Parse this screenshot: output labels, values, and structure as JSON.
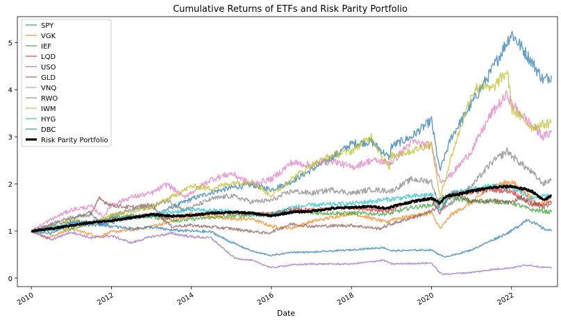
{
  "chart_data": {
    "type": "line",
    "title": "Cumulative Returns of ETFs and Risk Parity Portfolio",
    "xlabel": "Date",
    "ylabel": "",
    "x_ticks": [
      "2010",
      "2012",
      "2014",
      "2016",
      "2018",
      "2020",
      "2022"
    ],
    "y_ticks": [
      "0",
      "1",
      "2",
      "3",
      "4",
      "5"
    ],
    "xlim": [
      2009.65,
      2023.15
    ],
    "ylim": [
      -0.18,
      5.55
    ],
    "grid": false,
    "legend_position": "top-left",
    "series": [
      {
        "name": "SPY",
        "color": "#1f77b4",
        "width": 1.5,
        "opacity": 0.7,
        "x": [
          2010,
          2010.5,
          2011,
          2011.6,
          2012,
          2012.5,
          2013,
          2013.5,
          2014,
          2014.5,
          2015,
          2015.5,
          2016,
          2016.5,
          2017,
          2017.5,
          2018,
          2018.5,
          2018.95,
          2019,
          2019.5,
          2020,
          2020.18,
          2020.22,
          2020.5,
          2021,
          2021.5,
          2022,
          2022.5,
          2022.8,
          2023
        ],
        "y": [
          1.0,
          1.02,
          1.15,
          1.12,
          1.18,
          1.28,
          1.32,
          1.5,
          1.68,
          1.82,
          1.92,
          1.98,
          1.88,
          2.05,
          2.3,
          2.55,
          2.85,
          2.9,
          2.55,
          2.8,
          3.0,
          3.35,
          2.4,
          2.3,
          3.0,
          3.7,
          4.4,
          5.2,
          4.6,
          4.2,
          4.3
        ]
      },
      {
        "name": "VGK",
        "color": "#ff7f0e",
        "width": 1.5,
        "opacity": 0.7,
        "x": [
          2010,
          2010.4,
          2011,
          2011.7,
          2012,
          2012.5,
          2013,
          2013.5,
          2014,
          2014.5,
          2015,
          2015.5,
          2016,
          2016.5,
          2017,
          2018,
          2018.9,
          2019,
          2020,
          2020.22,
          2020.5,
          2021,
          2021.5,
          2022,
          2022.7,
          2023
        ],
        "y": [
          1.0,
          0.85,
          1.05,
          0.88,
          0.98,
          1.02,
          1.1,
          1.2,
          1.33,
          1.32,
          1.25,
          1.26,
          1.1,
          1.06,
          1.2,
          1.38,
          1.18,
          1.25,
          1.38,
          1.05,
          1.35,
          1.6,
          1.95,
          2.05,
          1.55,
          1.75
        ]
      },
      {
        "name": "IEF",
        "color": "#2ca02c",
        "width": 1.5,
        "opacity": 0.7,
        "x": [
          2010,
          2011,
          2011.8,
          2012.5,
          2013,
          2013.7,
          2014,
          2015,
          2016,
          2016.5,
          2017,
          2018,
          2018.9,
          2019.5,
          2020,
          2020.3,
          2020.6,
          2021,
          2021.5,
          2022,
          2022.5,
          2023
        ],
        "y": [
          1.0,
          1.05,
          1.25,
          1.33,
          1.3,
          1.22,
          1.25,
          1.32,
          1.35,
          1.44,
          1.38,
          1.38,
          1.36,
          1.5,
          1.55,
          1.72,
          1.7,
          1.62,
          1.63,
          1.6,
          1.45,
          1.4
        ]
      },
      {
        "name": "LQD",
        "color": "#d62728",
        "width": 1.5,
        "opacity": 0.7,
        "x": [
          2010,
          2011,
          2012,
          2013,
          2013.5,
          2014,
          2015,
          2016,
          2016.5,
          2017,
          2018,
          2018.9,
          2019.5,
          2020,
          2020.2,
          2020.5,
          2021,
          2021.5,
          2022,
          2022.5,
          2023
        ],
        "y": [
          1.0,
          1.1,
          1.25,
          1.35,
          1.28,
          1.35,
          1.38,
          1.36,
          1.46,
          1.44,
          1.5,
          1.43,
          1.62,
          1.7,
          1.38,
          1.8,
          1.82,
          1.88,
          1.85,
          1.55,
          1.6
        ]
      },
      {
        "name": "USO",
        "color": "#9467bd",
        "width": 1.5,
        "opacity": 0.7,
        "x": [
          2010,
          2010.5,
          2011,
          2011.5,
          2012,
          2012.5,
          2013,
          2013.5,
          2014,
          2014.5,
          2014.9,
          2015.1,
          2015.5,
          2016,
          2016.5,
          2017,
          2018,
          2018.8,
          2019,
          2020,
          2020.2,
          2020.3,
          2020.6,
          2021,
          2021.5,
          2022,
          2022.4,
          2022.8,
          2023
        ],
        "y": [
          1.0,
          0.82,
          0.98,
          0.85,
          0.9,
          0.75,
          0.88,
          0.95,
          0.88,
          0.85,
          0.55,
          0.42,
          0.38,
          0.22,
          0.28,
          0.3,
          0.3,
          0.38,
          0.3,
          0.32,
          0.12,
          0.08,
          0.1,
          0.12,
          0.18,
          0.22,
          0.28,
          0.23,
          0.22
        ]
      },
      {
        "name": "GLD",
        "color": "#8c564b",
        "width": 1.5,
        "opacity": 0.7,
        "x": [
          2010,
          2010.5,
          2011,
          2011.5,
          2011.7,
          2012,
          2012.5,
          2013,
          2013.3,
          2013.5,
          2014,
          2015,
          2015.9,
          2016.5,
          2017,
          2018,
          2018.7,
          2019,
          2019.5,
          2020,
          2020.6,
          2021,
          2021.5,
          2022,
          2022.2,
          2022.8,
          2023
        ],
        "y": [
          1.0,
          1.12,
          1.25,
          1.4,
          1.68,
          1.55,
          1.5,
          1.55,
          1.25,
          1.1,
          1.12,
          1.05,
          0.95,
          1.15,
          1.1,
          1.12,
          1.05,
          1.15,
          1.28,
          1.42,
          1.8,
          1.62,
          1.65,
          1.6,
          1.72,
          1.5,
          1.6
        ]
      },
      {
        "name": "VNQ",
        "color": "#e377c2",
        "width": 1.5,
        "opacity": 0.7,
        "x": [
          2010,
          2010.5,
          2011,
          2011.5,
          2011.8,
          2012,
          2012.5,
          2013,
          2013.4,
          2013.8,
          2014,
          2014.5,
          2015,
          2015.5,
          2016,
          2016.5,
          2017,
          2017.5,
          2018,
          2018.5,
          2019,
          2019.5,
          2020,
          2020.22,
          2020.5,
          2021,
          2021.5,
          2021.9,
          2022,
          2022.5,
          2022.8,
          2023
        ],
        "y": [
          1.0,
          1.25,
          1.45,
          1.52,
          1.3,
          1.55,
          1.72,
          1.8,
          2.0,
          1.72,
          1.82,
          2.1,
          2.22,
          2.0,
          2.1,
          2.45,
          2.4,
          2.5,
          2.35,
          2.5,
          2.45,
          2.9,
          2.8,
          2.05,
          2.2,
          2.7,
          3.5,
          3.9,
          3.7,
          3.25,
          3.0,
          3.1
        ]
      },
      {
        "name": "RWO",
        "color": "#7f7f7f",
        "width": 1.5,
        "opacity": 0.7,
        "x": [
          2010,
          2010.5,
          2011,
          2011.5,
          2011.8,
          2012,
          2012.5,
          2013,
          2013.4,
          2013.8,
          2014,
          2014.5,
          2015,
          2015.5,
          2016,
          2016.5,
          2017,
          2017.5,
          2018,
          2018.5,
          2019,
          2019.5,
          2020,
          2020.22,
          2020.5,
          2021,
          2021.5,
          2021.9,
          2022,
          2022.5,
          2022.8,
          2023
        ],
        "y": [
          1.0,
          1.15,
          1.3,
          1.35,
          1.15,
          1.32,
          1.45,
          1.52,
          1.65,
          1.45,
          1.5,
          1.68,
          1.75,
          1.62,
          1.65,
          1.85,
          1.8,
          1.88,
          1.8,
          1.88,
          1.85,
          2.1,
          2.05,
          1.45,
          1.6,
          1.95,
          2.45,
          2.7,
          2.6,
          2.25,
          2.0,
          2.1
        ]
      },
      {
        "name": "IWM",
        "color": "#bcbd22",
        "width": 1.5,
        "opacity": 0.7,
        "x": [
          2010,
          2010.5,
          2011,
          2011.6,
          2012,
          2012.5,
          2013,
          2013.5,
          2014,
          2014.5,
          2015,
          2015.5,
          2016,
          2016.5,
          2017,
          2017.5,
          2018,
          2018.5,
          2018.95,
          2019,
          2019.5,
          2020,
          2020.22,
          2020.5,
          2021,
          2021.2,
          2021.5,
          2021.9,
          2022,
          2022.5,
          2023
        ],
        "y": [
          1.0,
          1.05,
          1.25,
          1.15,
          1.35,
          1.4,
          1.5,
          1.72,
          1.95,
          1.9,
          2.02,
          2.05,
          1.75,
          2.1,
          2.4,
          2.6,
          2.7,
          3.0,
          2.3,
          2.6,
          2.7,
          2.85,
          1.7,
          2.6,
          3.9,
          4.1,
          4.0,
          4.4,
          3.6,
          3.2,
          3.3
        ]
      },
      {
        "name": "HYG",
        "color": "#17becf",
        "width": 1.5,
        "opacity": 0.7,
        "x": [
          2010,
          2011,
          2012,
          2013,
          2014,
          2015,
          2015.9,
          2016.5,
          2017,
          2018,
          2019,
          2020,
          2020.2,
          2020.5,
          2021,
          2021.5,
          2022,
          2022.5,
          2023
        ],
        "y": [
          1.0,
          1.15,
          1.25,
          1.35,
          1.45,
          1.42,
          1.32,
          1.5,
          1.55,
          1.58,
          1.68,
          1.78,
          1.45,
          1.8,
          1.88,
          1.95,
          1.92,
          1.7,
          1.75
        ]
      },
      {
        "name": "DBC",
        "color": "#1f77b4",
        "width": 1.5,
        "opacity": 0.7,
        "x": [
          2010,
          2010.5,
          2011,
          2011.5,
          2012,
          2012.5,
          2013,
          2013.5,
          2014,
          2014.5,
          2014.9,
          2015.3,
          2015.6,
          2016,
          2016.5,
          2017,
          2018,
          2018.8,
          2019,
          2020,
          2020.3,
          2020.6,
          2021,
          2021.5,
          2022,
          2022.4,
          2022.8,
          2023
        ],
        "y": [
          1.0,
          0.95,
          1.2,
          1.18,
          1.1,
          1.05,
          1.08,
          1.02,
          1.0,
          0.98,
          0.8,
          0.65,
          0.55,
          0.48,
          0.55,
          0.55,
          0.6,
          0.65,
          0.58,
          0.6,
          0.45,
          0.5,
          0.6,
          0.8,
          1.0,
          1.25,
          1.05,
          1.0
        ]
      },
      {
        "name": "Risk Parity Portfolio",
        "color": "#000000",
        "width": 3.2,
        "opacity": 1.0,
        "x": [
          2010,
          2010.5,
          2011,
          2011.5,
          2012,
          2012.5,
          2013,
          2013.5,
          2014,
          2014.5,
          2015,
          2015.5,
          2016,
          2016.5,
          2017,
          2017.5,
          2018,
          2018.5,
          2018.9,
          2019,
          2019.5,
          2020,
          2020.2,
          2020.4,
          2020.8,
          2021,
          2021.5,
          2022,
          2022.5,
          2022.8,
          2023
        ],
        "y": [
          1.0,
          1.05,
          1.12,
          1.18,
          1.22,
          1.28,
          1.35,
          1.32,
          1.33,
          1.38,
          1.4,
          1.38,
          1.32,
          1.4,
          1.42,
          1.48,
          1.5,
          1.52,
          1.48,
          1.52,
          1.62,
          1.7,
          1.6,
          1.75,
          1.8,
          1.85,
          1.92,
          1.95,
          1.85,
          1.65,
          1.75
        ]
      }
    ]
  }
}
